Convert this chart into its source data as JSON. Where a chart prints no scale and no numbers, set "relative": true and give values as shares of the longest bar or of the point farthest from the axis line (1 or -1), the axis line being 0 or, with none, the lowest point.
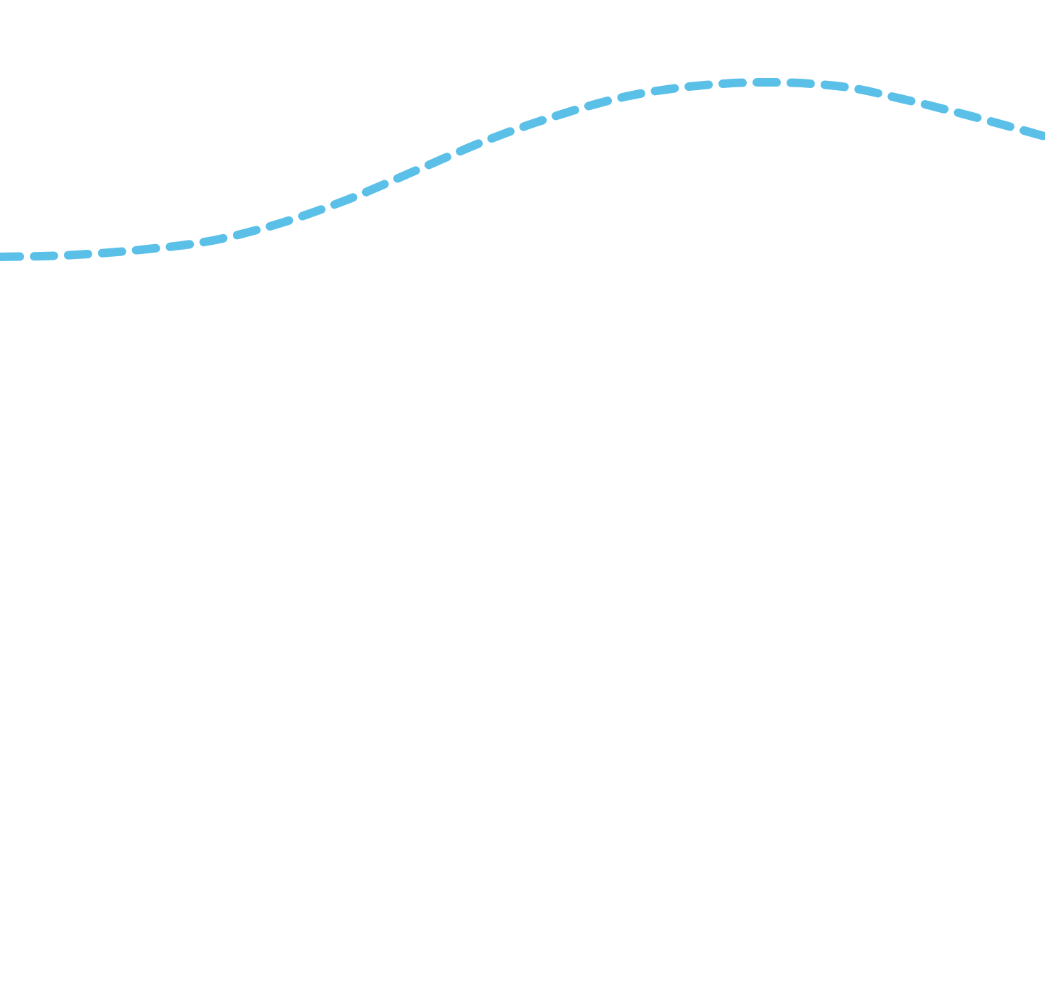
{
  "chart_data": {
    "type": "line",
    "relative": true,
    "line_style": "dashed",
    "marker": "none",
    "tick_labels": false,
    "categories": [
      null,
      null,
      null,
      null,
      null,
      null,
      null,
      null,
      null,
      null,
      null,
      null,
      null,
      null,
      null,
      null
    ],
    "series": [
      {
        "color": "#5bc0e8",
        "values": [
          0,
          0.01,
          0.04,
          0.09,
          0.19,
          0.33,
          0.5,
          0.67,
          0.81,
          0.92,
          0.98,
          1,
          0.98,
          0.9,
          0.8,
          0.69
        ]
      }
    ]
  }
}
